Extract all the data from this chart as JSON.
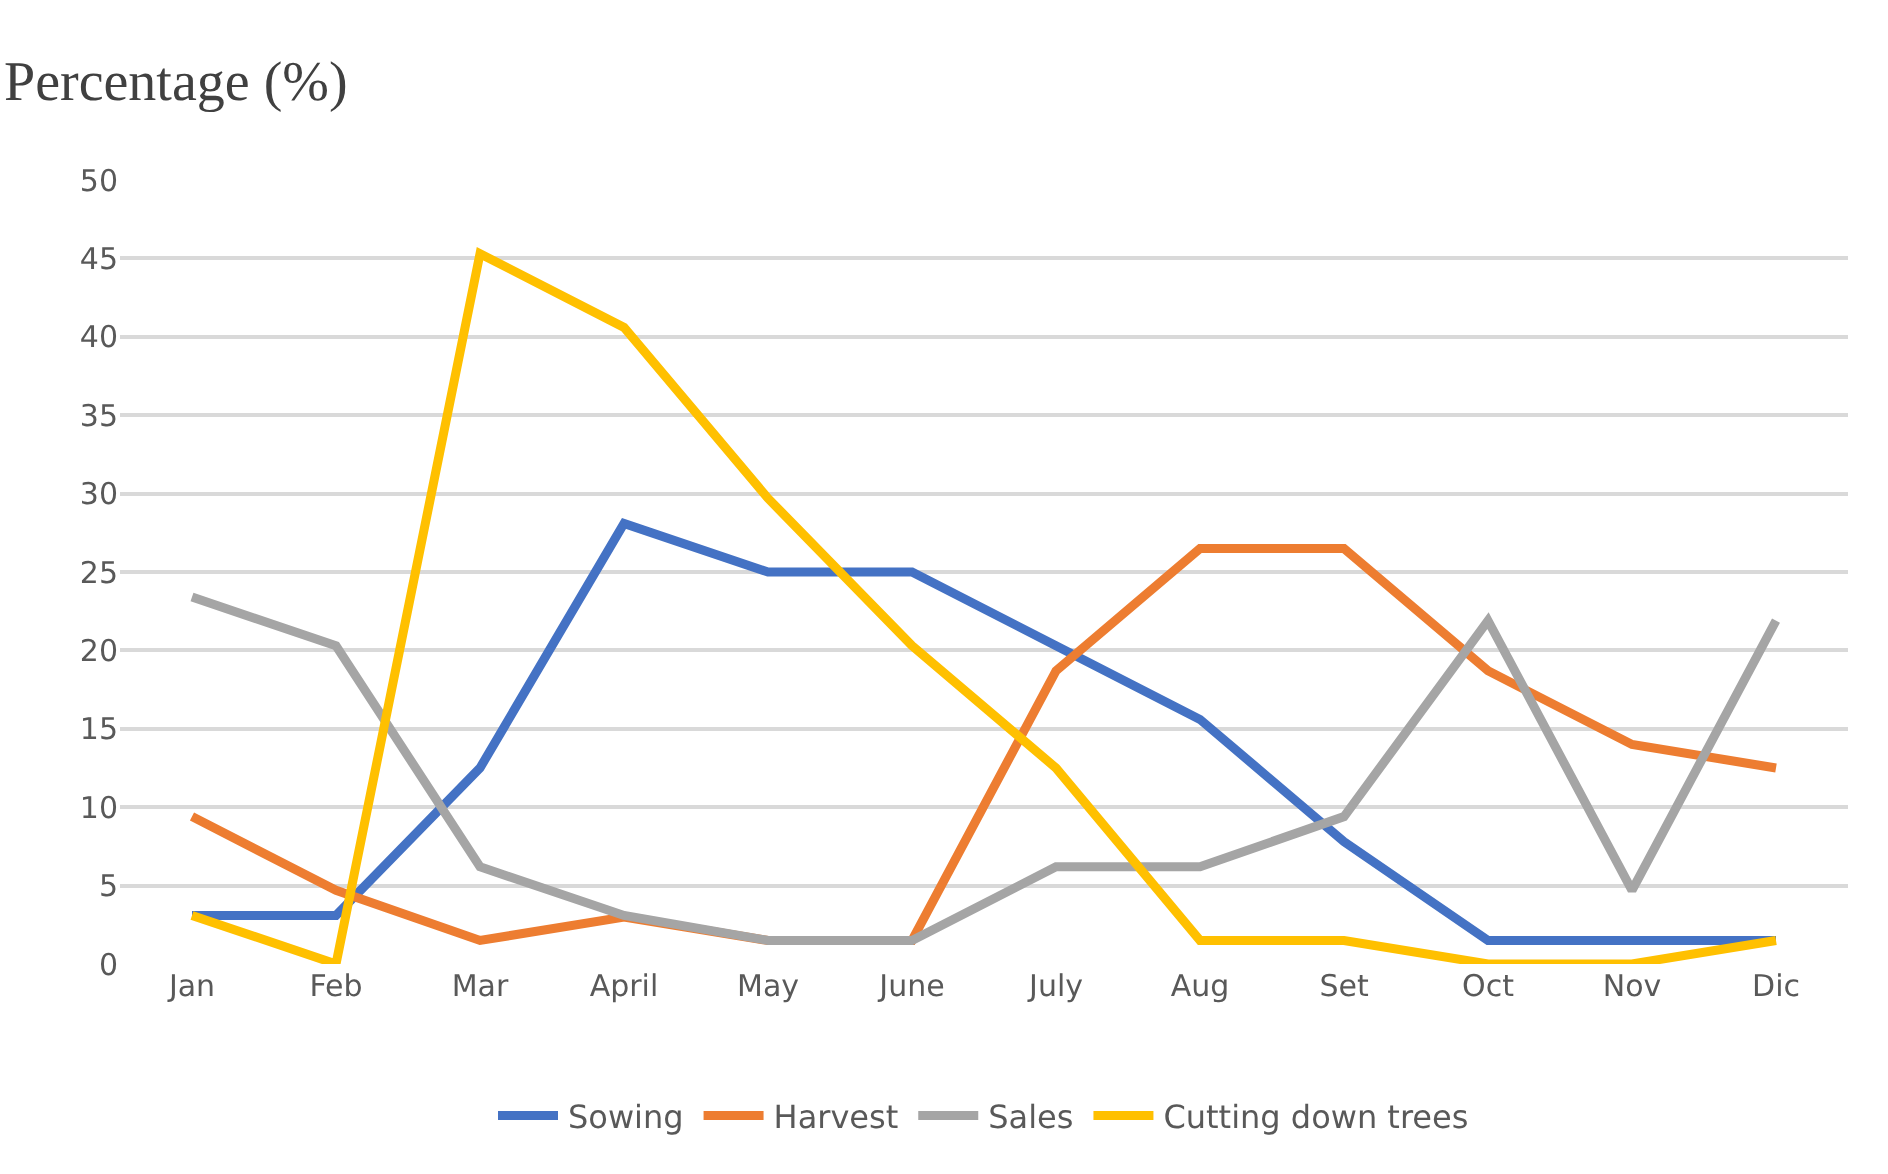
{
  "chart_data": {
    "type": "line",
    "ylabel": "Percentage (%)",
    "categories": [
      "Jan",
      "Feb",
      "Mar",
      "April",
      "May",
      "June",
      "July",
      "Aug",
      "Set",
      "Oct",
      "Nov",
      "Dic"
    ],
    "series": [
      {
        "name": "Sowing",
        "color": "#4472c4",
        "values": [
          3.1,
          3.1,
          12.5,
          28.1,
          25,
          25,
          20.3,
          15.6,
          7.8,
          1.5,
          1.5,
          1.5
        ]
      },
      {
        "name": "Harvest",
        "color": "#ed7d31",
        "values": [
          9.4,
          4.7,
          1.5,
          3,
          1.5,
          1.5,
          18.7,
          26.5,
          26.5,
          18.7,
          14,
          12.5
        ]
      },
      {
        "name": "Sales",
        "color": "#a5a5a5",
        "values": [
          23.4,
          20.3,
          6.2,
          3.1,
          1.5,
          1.5,
          6.2,
          6.2,
          9.4,
          21.9,
          4.7,
          21.9
        ]
      },
      {
        "name": "Cutting down trees",
        "color": "#ffc000",
        "values": [
          3.1,
          0,
          45.3,
          40.6,
          29.7,
          20.3,
          12.5,
          1.5,
          1.5,
          0,
          0,
          1.5
        ]
      }
    ],
    "ylim": [
      0,
      50
    ],
    "yticks": [
      0,
      5,
      10,
      15,
      20,
      25,
      30,
      35,
      40,
      45,
      50
    ],
    "grid": "y",
    "legend": "bottom",
    "marker": "none",
    "line_style": "solid"
  }
}
